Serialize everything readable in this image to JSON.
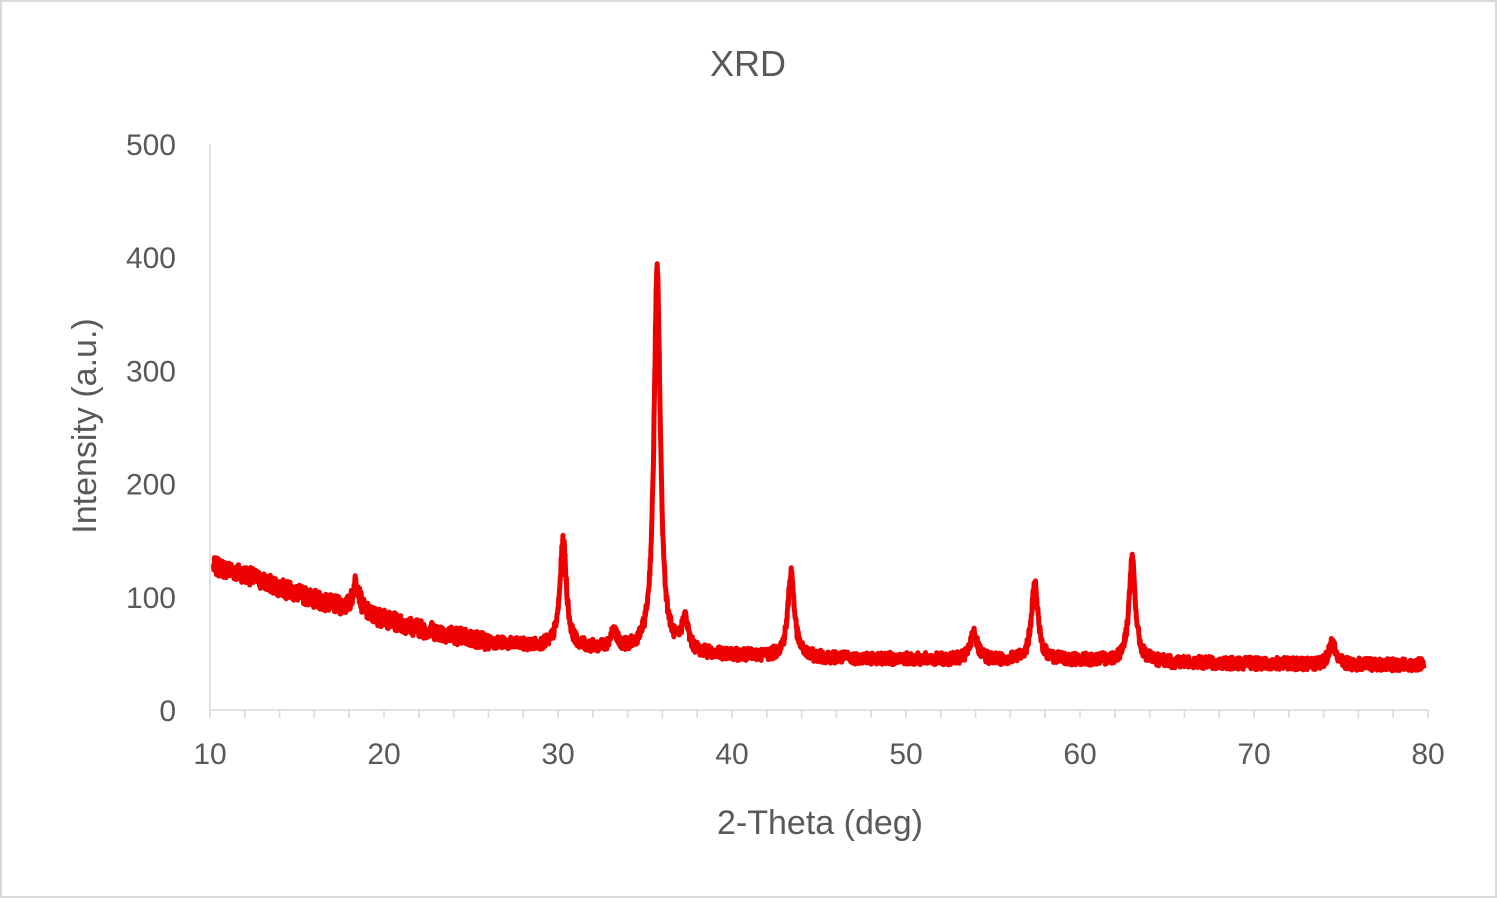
{
  "chart_data": {
    "type": "line",
    "title": "XRD",
    "xlabel": "2-Theta (deg)",
    "ylabel": "Intensity (a.u.)",
    "xlim": [
      10,
      80
    ],
    "ylim": [
      0,
      500
    ],
    "x_ticks": [
      "10",
      "20",
      "30",
      "40",
      "50",
      "60",
      "70",
      "80"
    ],
    "y_ticks": [
      "0",
      "100",
      "200",
      "300",
      "400",
      "500"
    ],
    "grid": false,
    "legend": "none",
    "series_color": "#ee0000",
    "x_range": [
      10.2,
      79.8
    ],
    "baseline": [
      [
        10.2,
        127
      ],
      [
        12,
        120
      ],
      [
        14,
        108
      ],
      [
        16,
        98
      ],
      [
        18,
        88
      ],
      [
        20,
        80
      ],
      [
        22,
        72
      ],
      [
        24,
        66
      ],
      [
        26,
        60
      ],
      [
        28,
        57
      ],
      [
        30,
        55
      ],
      [
        33,
        53
      ],
      [
        36,
        50
      ],
      [
        40,
        48
      ],
      [
        45,
        46
      ],
      [
        50,
        45
      ],
      [
        55,
        44
      ],
      [
        60,
        44
      ],
      [
        65,
        42
      ],
      [
        70,
        41
      ],
      [
        75,
        40
      ],
      [
        79.8,
        40
      ]
    ],
    "peaks": [
      {
        "x": 18.4,
        "height": 28
      },
      {
        "x": 30.3,
        "height": 95
      },
      {
        "x": 33.2,
        "height": 15
      },
      {
        "x": 35.7,
        "height": 338
      },
      {
        "x": 37.3,
        "height": 28
      },
      {
        "x": 43.4,
        "height": 75
      },
      {
        "x": 53.9,
        "height": 25
      },
      {
        "x": 57.4,
        "height": 68
      },
      {
        "x": 63.0,
        "height": 90
      },
      {
        "x": 74.5,
        "height": 20
      }
    ]
  }
}
